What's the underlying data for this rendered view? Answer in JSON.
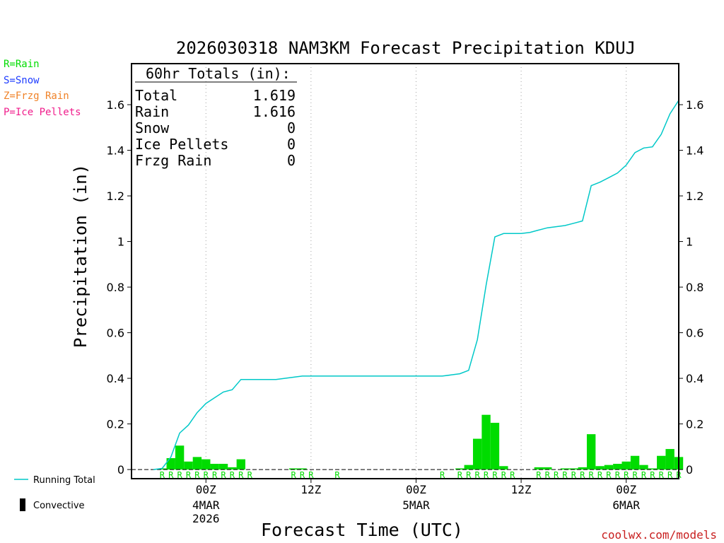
{
  "chart_data": {
    "type": "bar+line",
    "title": "2026030318 NAM3KM Forecast Precipitation KDUJ",
    "xlabel": "Forecast Time (UTC)",
    "ylabel": "Precipitation (in)",
    "ylim": [
      -0.04,
      1.78
    ],
    "y_ticks": [
      0,
      0.2,
      0.4,
      0.6,
      0.8,
      1,
      1.2,
      1.4,
      1.6
    ],
    "y_tick_labels": [
      "0",
      "0.2",
      "0.4",
      "0.6",
      "0.8",
      "1",
      "1.2",
      "1.4",
      "1.6"
    ],
    "x_ticks": [
      {
        "hour": 6,
        "label": "00Z",
        "sublabel": "4MAR",
        "sublabel2": "2026"
      },
      {
        "hour": 18,
        "label": "12Z",
        "sublabel": "",
        "sublabel2": ""
      },
      {
        "hour": 30,
        "label": "00Z",
        "sublabel": "5MAR",
        "sublabel2": ""
      },
      {
        "hour": 42,
        "label": "12Z",
        "sublabel": "",
        "sublabel2": ""
      },
      {
        "hour": 54,
        "label": "00Z",
        "sublabel": "6MAR",
        "sublabel2": ""
      }
    ],
    "x_range_hours": [
      0,
      60
    ],
    "hourly_precip": [
      0,
      0.005,
      0.05,
      0.105,
      0.035,
      0.055,
      0.045,
      0.025,
      0.025,
      0.01,
      0.045,
      0,
      0,
      0,
      0,
      0,
      0.005,
      0.005,
      0,
      0,
      0,
      0,
      0,
      0,
      0,
      0,
      0,
      0,
      0,
      0,
      0,
      0,
      0,
      0,
      0,
      0.005,
      0.02,
      0.135,
      0.24,
      0.205,
      0.015,
      0,
      0,
      0,
      0.01,
      0.01,
      0,
      0.005,
      0.005,
      0.01,
      0.155,
      0.015,
      0.02,
      0.025,
      0.035,
      0.06,
      0.02,
      0.005,
      0.06,
      0.09,
      0.055
    ],
    "running_total": [
      0,
      0.005,
      0.055,
      0.16,
      0.195,
      0.25,
      0.29,
      0.315,
      0.34,
      0.35,
      0.395,
      0.395,
      0.395,
      0.395,
      0.395,
      0.4,
      0.405,
      0.41,
      0.41,
      0.41,
      0.41,
      0.41,
      0.41,
      0.41,
      0.41,
      0.41,
      0.41,
      0.41,
      0.41,
      0.41,
      0.41,
      0.41,
      0.41,
      0.41,
      0.415,
      0.42,
      0.435,
      0.57,
      0.81,
      1.02,
      1.035,
      1.035,
      1.035,
      1.04,
      1.05,
      1.06,
      1.065,
      1.07,
      1.08,
      1.09,
      1.245,
      1.26,
      1.28,
      1.3,
      1.335,
      1.39,
      1.41,
      1.415,
      1.47,
      1.56,
      1.619
    ],
    "ptype_marks": [
      {
        "hour": 1,
        "type": "R"
      },
      {
        "hour": 2,
        "type": "R"
      },
      {
        "hour": 3,
        "type": "R"
      },
      {
        "hour": 4,
        "type": "R"
      },
      {
        "hour": 5,
        "type": "R"
      },
      {
        "hour": 6,
        "type": "R"
      },
      {
        "hour": 7,
        "type": "R"
      },
      {
        "hour": 8,
        "type": "R"
      },
      {
        "hour": 9,
        "type": "R"
      },
      {
        "hour": 10,
        "type": "R"
      },
      {
        "hour": 11,
        "type": "R"
      },
      {
        "hour": 16,
        "type": "R"
      },
      {
        "hour": 17,
        "type": "R"
      },
      {
        "hour": 18,
        "type": "R"
      },
      {
        "hour": 21,
        "type": "R"
      },
      {
        "hour": 33,
        "type": "R"
      },
      {
        "hour": 35,
        "type": "R"
      },
      {
        "hour": 36,
        "type": "R"
      },
      {
        "hour": 37,
        "type": "R"
      },
      {
        "hour": 38,
        "type": "R"
      },
      {
        "hour": 39,
        "type": "R"
      },
      {
        "hour": 40,
        "type": "R"
      },
      {
        "hour": 41,
        "type": "R"
      },
      {
        "hour": 44,
        "type": "R"
      },
      {
        "hour": 45,
        "type": "R"
      },
      {
        "hour": 46,
        "type": "R"
      },
      {
        "hour": 47,
        "type": "R"
      },
      {
        "hour": 48,
        "type": "R"
      },
      {
        "hour": 49,
        "type": "R"
      },
      {
        "hour": 50,
        "type": "R"
      },
      {
        "hour": 51,
        "type": "R"
      },
      {
        "hour": 52,
        "type": "R"
      },
      {
        "hour": 53,
        "type": "R"
      },
      {
        "hour": 54,
        "type": "R"
      },
      {
        "hour": 55,
        "type": "R"
      },
      {
        "hour": 56,
        "type": "R"
      },
      {
        "hour": 57,
        "type": "R"
      },
      {
        "hour": 58,
        "type": "R"
      },
      {
        "hour": 59,
        "type": "R"
      },
      {
        "hour": 60,
        "type": "R"
      }
    ],
    "totals_box": {
      "heading": "60hr Totals (in):",
      "rows": [
        {
          "label": "Total",
          "value": "1.619"
        },
        {
          "label": "Rain",
          "value": "1.616"
        },
        {
          "label": "Snow",
          "value": "0"
        },
        {
          "label": "Ice Pellets",
          "value": "0"
        },
        {
          "label": "Frzg Rain",
          "value": "0"
        }
      ]
    },
    "legend": [
      {
        "label": "Running Total",
        "kind": "line",
        "color": "#00c8c8"
      },
      {
        "label": "Convective",
        "kind": "box",
        "color": "#000000"
      }
    ]
  },
  "ptype_key": [
    {
      "label": "R=Rain",
      "color": "#00dc00"
    },
    {
      "label": "S=Snow",
      "color": "#1e3cff"
    },
    {
      "label": "Z=Frzg Rain",
      "color": "#f08228"
    },
    {
      "label": "P=Ice Pellets",
      "color": "#f01e8c"
    }
  ],
  "colors": {
    "bar": "#00dc00",
    "line": "#00c8c8",
    "axis": "#000000",
    "grid": "#a0a0a0",
    "credit": "#c81e1e"
  },
  "credit": "coolwx.com/models"
}
